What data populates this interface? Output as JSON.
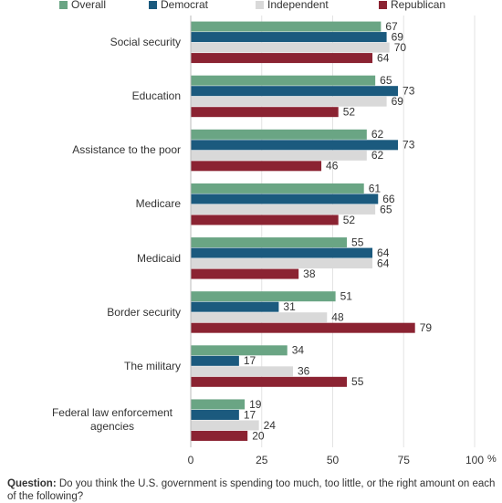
{
  "chart_data": {
    "type": "hbar",
    "categories": [
      "Social security",
      "Education",
      "Assistance to the poor",
      "Medicare",
      "Medicaid",
      "Border security",
      "The military",
      "Federal law enforcement agencies"
    ],
    "series": [
      {
        "name": "Overall",
        "color": "#6aa584",
        "values": [
          67,
          65,
          62,
          61,
          55,
          51,
          34,
          19
        ]
      },
      {
        "name": "Democrat",
        "color": "#1b5a7e",
        "values": [
          69,
          73,
          73,
          66,
          64,
          31,
          17,
          17
        ]
      },
      {
        "name": "Independent",
        "color": "#d9d9d9",
        "values": [
          70,
          69,
          62,
          65,
          64,
          48,
          36,
          24
        ]
      },
      {
        "name": "Republican",
        "color": "#8b2332",
        "values": [
          64,
          52,
          46,
          52,
          38,
          79,
          55,
          20
        ]
      }
    ],
    "xlim": [
      0,
      100
    ],
    "xticks": [
      0,
      25,
      50,
      75,
      100
    ],
    "x_unit": "%",
    "grid": true,
    "footnote": {
      "label": "Question:",
      "text": "Do you think the U.S. government is spending too much, too little, or the right amount on each of the following?"
    }
  }
}
